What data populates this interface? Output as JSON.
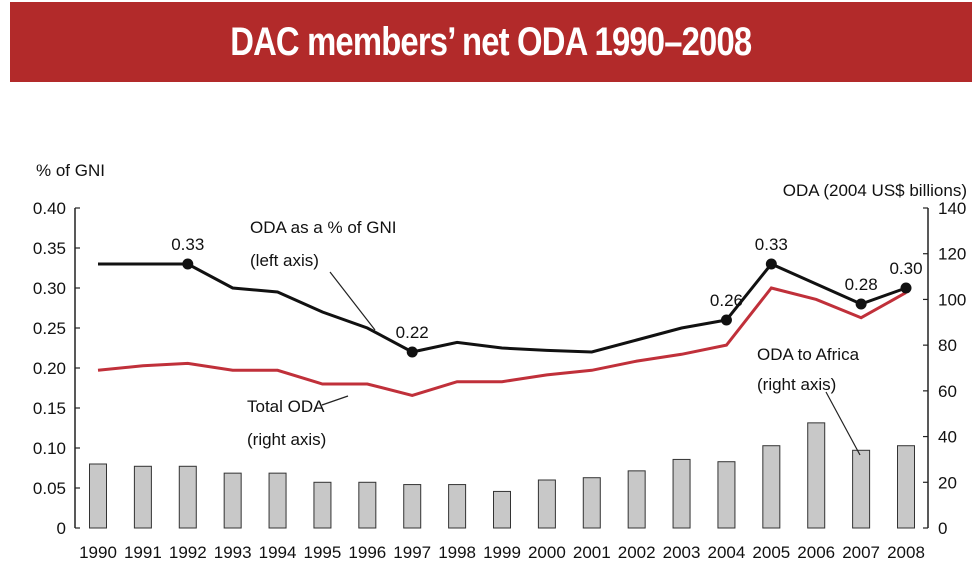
{
  "banner": {
    "title": "DAC members’ net ODA 1990–2008"
  },
  "colors": {
    "banner": "#b22a2a",
    "gni_line": "#111111",
    "total_oda_line": "#c0303a",
    "africa_bars": "#c8c8c8",
    "bar_stroke": "#333333"
  },
  "chart_data": {
    "type": "bar",
    "title": "DAC members’ net ODA 1990–2008",
    "left_axis": {
      "label": "% of GNI",
      "ylim": [
        0,
        0.4
      ],
      "ticks": [
        "0",
        "0.05",
        "0.10",
        "0.15",
        "0.20",
        "0.25",
        "0.30",
        "0.35",
        "0.40"
      ]
    },
    "right_axis": {
      "label": "ODA (2004 US$ billions)",
      "ylim": [
        0,
        140
      ],
      "ticks": [
        "0",
        "20",
        "40",
        "60",
        "80",
        "100",
        "120",
        "140"
      ]
    },
    "categories": [
      "1990",
      "1991",
      "1992",
      "1993",
      "1994",
      "1995",
      "1996",
      "1997",
      "1998",
      "1999",
      "2000",
      "2001",
      "2002",
      "2003",
      "2004",
      "2005",
      "2006",
      "2007",
      "2008"
    ],
    "series": [
      {
        "name": "ODA as a % of GNI",
        "type": "line",
        "axis": "left",
        "values": [
          0.33,
          0.33,
          0.33,
          0.3,
          0.295,
          0.27,
          0.25,
          0.22,
          0.232,
          0.225,
          0.222,
          0.22,
          0.235,
          0.25,
          0.26,
          0.33,
          0.305,
          0.28,
          0.3
        ],
        "marked_points": [
          {
            "year": "1992",
            "label": "0.33"
          },
          {
            "year": "1997",
            "label": "0.22"
          },
          {
            "year": "2004",
            "label": "0.26"
          },
          {
            "year": "2005",
            "label": "0.33"
          },
          {
            "year": "2007",
            "label": "0.28"
          },
          {
            "year": "2008",
            "label": "0.30"
          }
        ]
      },
      {
        "name": "Total ODA",
        "type": "line",
        "axis": "right",
        "values": [
          69,
          71,
          72,
          69,
          69,
          63,
          63,
          58,
          64,
          64,
          67,
          69,
          73,
          76,
          80,
          105,
          100,
          92,
          103
        ]
      },
      {
        "name": "ODA to Africa",
        "type": "bar",
        "axis": "right",
        "values": [
          28,
          27,
          27,
          24,
          24,
          20,
          20,
          19,
          19,
          16,
          21,
          22,
          25,
          30,
          29,
          36,
          46,
          34,
          36
        ]
      }
    ],
    "annotations": {
      "gni": [
        "ODA as a % of GNI",
        "(left axis)"
      ],
      "total": [
        "Total ODA",
        "(right axis)"
      ],
      "africa": [
        "ODA to Africa",
        "(right axis)"
      ]
    },
    "grid": false,
    "legend": "none"
  }
}
